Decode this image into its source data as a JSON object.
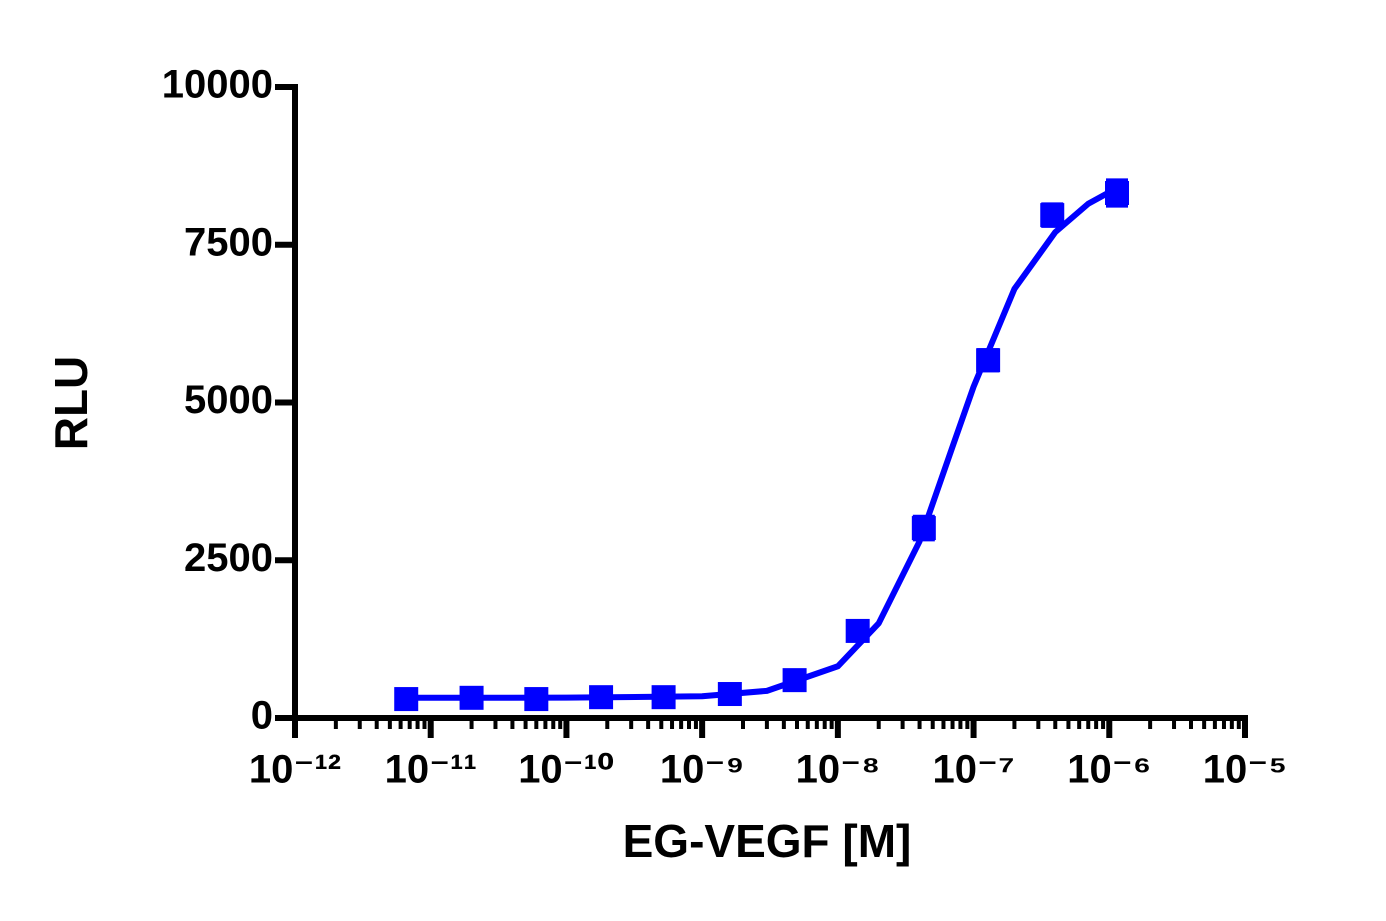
{
  "chart_data": {
    "type": "scatter",
    "xlabel": "EG-VEGF [M]",
    "ylabel": "RLU",
    "xscale": "log",
    "xlim": [
      1e-12,
      1e-05
    ],
    "xticks": [
      {
        "value": 1e-12,
        "label": "10⁻¹²"
      },
      {
        "value": 1e-11,
        "label": "10⁻¹¹"
      },
      {
        "value": 1e-10,
        "label": "10⁻¹⁰"
      },
      {
        "value": 1e-09,
        "label": "10⁻⁹"
      },
      {
        "value": 1e-08,
        "label": "10⁻⁸"
      },
      {
        "value": 1e-07,
        "label": "10⁻⁷"
      },
      {
        "value": 1e-06,
        "label": "10⁻⁶"
      },
      {
        "value": 1e-05,
        "label": "10⁻⁵"
      }
    ],
    "ylim": [
      0,
      10000
    ],
    "yticks": [
      0,
      2500,
      5000,
      7500,
      10000
    ],
    "series": [
      {
        "style": "markers",
        "color": "#0000ff",
        "x": [
          6.6e-12,
          2e-11,
          6e-11,
          1.8e-10,
          5.2e-10,
          1.6e-09,
          4.8e-09,
          1.4e-08,
          4.3e-08,
          1.28e-07,
          3.8e-07,
          1.14e-06
        ],
        "values": [
          300,
          320,
          300,
          330,
          330,
          380,
          600,
          1380,
          3010,
          5670,
          7970,
          8320
        ],
        "errors": [
          50,
          50,
          50,
          50,
          50,
          60,
          70,
          100,
          180,
          160,
          170,
          200
        ]
      },
      {
        "style": "line",
        "color": "#0000ff",
        "x": [
          6.6e-12,
          1e-10,
          1e-09,
          3e-09,
          1e-08,
          2e-08,
          4e-08,
          7e-08,
          1e-07,
          2e-07,
          4e-07,
          7e-07,
          1.14e-06
        ],
        "values": [
          320,
          322,
          345,
          430,
          820,
          1500,
          2800,
          4300,
          5250,
          6800,
          7700,
          8150,
          8400
        ]
      }
    ]
  }
}
